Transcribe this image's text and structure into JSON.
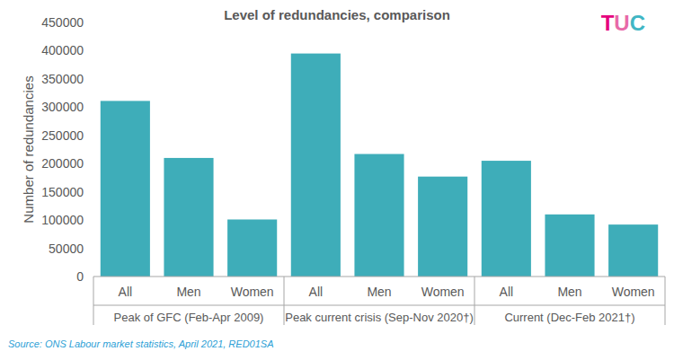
{
  "chart_data": {
    "type": "bar",
    "title": "Level of redundancies, comparison",
    "y_label": "Number of redundancies",
    "categories": [
      "All",
      "Men",
      "Women",
      "All",
      "Men",
      "Women",
      "All",
      "Men",
      "Women"
    ],
    "category_groups": [
      "Peak of GFC (Feb-Apr 2009)",
      "Peak current crisis (Sep-Nov 2020†)",
      "Current (Dec-Feb 2021†)"
    ],
    "values": [
      311000,
      210000,
      101000,
      395000,
      217000,
      177000,
      205000,
      110000,
      92000
    ],
    "color": "#3eadb9",
    "ylim": [
      0,
      450000
    ],
    "yticks": [
      0,
      50000,
      100000,
      150000,
      200000,
      250000,
      300000,
      350000,
      400000,
      450000
    ],
    "grid": false,
    "data_labels": false,
    "logo": "TUC",
    "source": "Source: ONS Labour market statistics, April 2021, RED01SA"
  }
}
